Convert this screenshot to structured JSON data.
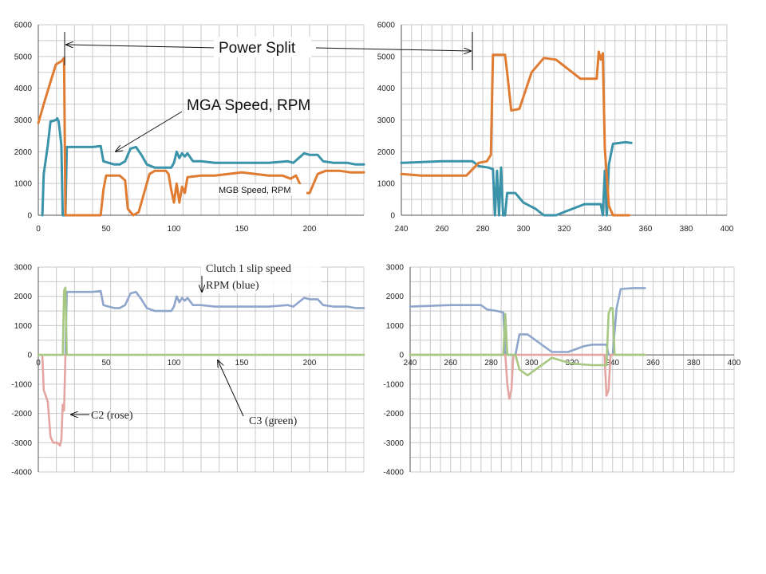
{
  "chart_data": [
    {
      "type": "line",
      "xlim": [
        0,
        240
      ],
      "ylim": [
        0,
        6000
      ],
      "xticks": [
        0,
        50,
        100,
        150,
        200
      ],
      "yticks": [
        0,
        1000,
        2000,
        3000,
        4000,
        5000,
        6000
      ],
      "grid": true,
      "series": [
        {
          "name": "MGA Speed, RPM",
          "color": "#3a93a8",
          "points": [
            [
              3,
              0
            ],
            [
              4,
              1300
            ],
            [
              7,
              2200
            ],
            [
              9,
              2950
            ],
            [
              13,
              3000
            ],
            [
              14,
              3050
            ],
            [
              15,
              2950
            ],
            [
              16,
              2600
            ],
            [
              17,
              2200
            ],
            [
              18,
              0
            ],
            [
              20,
              0
            ],
            [
              21,
              2150
            ],
            [
              30,
              2150
            ],
            [
              40,
              2150
            ],
            [
              46,
              2180
            ],
            [
              48,
              1700
            ],
            [
              52,
              1650
            ],
            [
              56,
              1600
            ],
            [
              60,
              1600
            ],
            [
              64,
              1700
            ],
            [
              68,
              2100
            ],
            [
              72,
              2150
            ],
            [
              76,
              1900
            ],
            [
              80,
              1600
            ],
            [
              86,
              1500
            ],
            [
              92,
              1500
            ],
            [
              98,
              1500
            ],
            [
              100,
              1650
            ],
            [
              102,
              2000
            ],
            [
              104,
              1800
            ],
            [
              106,
              1950
            ],
            [
              108,
              1850
            ],
            [
              110,
              1950
            ],
            [
              114,
              1700
            ],
            [
              120,
              1700
            ],
            [
              130,
              1650
            ],
            [
              150,
              1650
            ],
            [
              170,
              1650
            ],
            [
              184,
              1700
            ],
            [
              188,
              1650
            ],
            [
              196,
              1950
            ],
            [
              200,
              1900
            ],
            [
              206,
              1900
            ],
            [
              210,
              1700
            ],
            [
              218,
              1650
            ],
            [
              228,
              1650
            ],
            [
              234,
              1600
            ],
            [
              240,
              1600
            ]
          ]
        },
        {
          "name": "MGB Speed, RPM",
          "color": "#e07b32",
          "points": [
            [
              0,
              2900
            ],
            [
              4,
              3500
            ],
            [
              9,
              4200
            ],
            [
              13,
              4750
            ],
            [
              17,
              4850
            ],
            [
              19,
              4950
            ],
            [
              20,
              0
            ],
            [
              30,
              0
            ],
            [
              46,
              0
            ],
            [
              48,
              800
            ],
            [
              50,
              1250
            ],
            [
              60,
              1250
            ],
            [
              64,
              1100
            ],
            [
              66,
              200
            ],
            [
              70,
              0
            ],
            [
              74,
              100
            ],
            [
              78,
              700
            ],
            [
              82,
              1300
            ],
            [
              86,
              1400
            ],
            [
              94,
              1400
            ],
            [
              96,
              1300
            ],
            [
              98,
              800
            ],
            [
              100,
              400
            ],
            [
              102,
              1000
            ],
            [
              104,
              400
            ],
            [
              106,
              900
            ],
            [
              108,
              700
            ],
            [
              110,
              1200
            ],
            [
              120,
              1250
            ],
            [
              130,
              1250
            ],
            [
              140,
              1300
            ],
            [
              150,
              1350
            ],
            [
              160,
              1300
            ],
            [
              170,
              1250
            ],
            [
              180,
              1250
            ],
            [
              186,
              1150
            ],
            [
              190,
              1250
            ],
            [
              196,
              700
            ],
            [
              200,
              700
            ],
            [
              206,
              1300
            ],
            [
              212,
              1400
            ],
            [
              222,
              1400
            ],
            [
              230,
              1350
            ],
            [
              240,
              1350
            ]
          ]
        }
      ]
    },
    {
      "type": "line",
      "xlim": [
        240,
        400
      ],
      "ylim": [
        0,
        6000
      ],
      "xticks": [
        240,
        260,
        280,
        300,
        320,
        340,
        360,
        380,
        400
      ],
      "yticks": [
        0,
        1000,
        2000,
        3000,
        4000,
        5000,
        6000
      ],
      "grid": true,
      "series": [
        {
          "name": "MGA Speed, RPM",
          "color": "#3a93a8",
          "points": [
            [
              240,
              1650
            ],
            [
              260,
              1700
            ],
            [
              275,
              1700
            ],
            [
              278,
              1550
            ],
            [
              283,
              1500
            ],
            [
              285,
              1450
            ],
            [
              286,
              0
            ],
            [
              287,
              1400
            ],
            [
              288,
              0
            ],
            [
              289,
              1500
            ],
            [
              290,
              0
            ],
            [
              291,
              0
            ],
            [
              292,
              700
            ],
            [
              296,
              700
            ],
            [
              300,
              400
            ],
            [
              306,
              200
            ],
            [
              310,
              0
            ],
            [
              316,
              0
            ],
            [
              322,
              150
            ],
            [
              330,
              350
            ],
            [
              338,
              350
            ],
            [
              339,
              0
            ],
            [
              340,
              1400
            ],
            [
              341,
              0
            ],
            [
              342,
              1600
            ],
            [
              344,
              2250
            ],
            [
              350,
              2300
            ],
            [
              353,
              2280
            ]
          ]
        },
        {
          "name": "MGB Speed, RPM",
          "color": "#e07b32",
          "points": [
            [
              240,
              1300
            ],
            [
              250,
              1250
            ],
            [
              260,
              1250
            ],
            [
              272,
              1250
            ],
            [
              278,
              1650
            ],
            [
              282,
              1700
            ],
            [
              284,
              1900
            ],
            [
              285,
              5050
            ],
            [
              291,
              5050
            ],
            [
              292,
              4500
            ],
            [
              294,
              3300
            ],
            [
              298,
              3350
            ],
            [
              304,
              4500
            ],
            [
              310,
              4950
            ],
            [
              316,
              4900
            ],
            [
              328,
              4300
            ],
            [
              336,
              4300
            ],
            [
              337,
              5150
            ],
            [
              338,
              4900
            ],
            [
              339,
              5100
            ],
            [
              340,
              2100
            ],
            [
              342,
              300
            ],
            [
              344,
              0
            ],
            [
              352,
              0
            ]
          ]
        }
      ]
    },
    {
      "type": "line",
      "xlim": [
        0,
        240
      ],
      "ylim": [
        -4000,
        3000
      ],
      "xticks": [
        0,
        50,
        100,
        150,
        200
      ],
      "yticks": [
        -4000,
        -3000,
        -2000,
        -1000,
        0,
        1000,
        2000,
        3000
      ],
      "grid": true,
      "series": [
        {
          "name": "Clutch 1 slip speed RPM (blue)",
          "color": "#8fa6cc",
          "points": [
            [
              20,
              0
            ],
            [
              21,
              2150
            ],
            [
              30,
              2150
            ],
            [
              40,
              2150
            ],
            [
              46,
              2180
            ],
            [
              48,
              1700
            ],
            [
              52,
              1650
            ],
            [
              56,
              1600
            ],
            [
              60,
              1600
            ],
            [
              64,
              1700
            ],
            [
              68,
              2100
            ],
            [
              72,
              2150
            ],
            [
              76,
              1900
            ],
            [
              80,
              1600
            ],
            [
              86,
              1500
            ],
            [
              92,
              1500
            ],
            [
              98,
              1500
            ],
            [
              100,
              1650
            ],
            [
              102,
              2000
            ],
            [
              104,
              1800
            ],
            [
              106,
              1950
            ],
            [
              108,
              1850
            ],
            [
              110,
              1950
            ],
            [
              114,
              1700
            ],
            [
              120,
              1700
            ],
            [
              130,
              1650
            ],
            [
              150,
              1650
            ],
            [
              170,
              1650
            ],
            [
              184,
              1700
            ],
            [
              188,
              1650
            ],
            [
              196,
              1950
            ],
            [
              200,
              1900
            ],
            [
              206,
              1900
            ],
            [
              210,
              1700
            ],
            [
              218,
              1650
            ],
            [
              228,
              1650
            ],
            [
              234,
              1600
            ],
            [
              240,
              1600
            ]
          ]
        },
        {
          "name": "C2 (rose)",
          "color": "#e3a5a2",
          "points": [
            [
              0,
              0
            ],
            [
              3,
              0
            ],
            [
              4,
              -1200
            ],
            [
              7,
              -1600
            ],
            [
              9,
              -2800
            ],
            [
              11,
              -3000
            ],
            [
              14,
              -3000
            ],
            [
              16,
              -3100
            ],
            [
              17,
              -2900
            ],
            [
              18,
              -1700
            ],
            [
              19,
              -1900
            ],
            [
              20,
              0
            ]
          ]
        },
        {
          "name": "C3 (green)",
          "color": "#a7c882",
          "points": [
            [
              0,
              0
            ],
            [
              18,
              0
            ],
            [
              19,
              2200
            ],
            [
              20,
              2300
            ],
            [
              21,
              0
            ],
            [
              100,
              0
            ],
            [
              240,
              0
            ]
          ]
        }
      ]
    },
    {
      "type": "line",
      "xlim": [
        240,
        400
      ],
      "ylim": [
        -4000,
        3000
      ],
      "xticks": [
        240,
        260,
        280,
        300,
        320,
        340,
        360,
        380,
        400
      ],
      "yticks": [
        -4000,
        -3000,
        -2000,
        -1000,
        0,
        1000,
        2000,
        3000
      ],
      "grid": true,
      "series": [
        {
          "name": "Clutch 1 slip speed RPM (blue)",
          "color": "#8fa6cc",
          "points": [
            [
              240,
              1650
            ],
            [
              260,
              1700
            ],
            [
              275,
              1700
            ],
            [
              278,
              1550
            ],
            [
              283,
              1500
            ],
            [
              286,
              1450
            ],
            [
              287,
              0
            ],
            [
              292,
              0
            ],
            [
              294,
              700
            ],
            [
              298,
              700
            ],
            [
              304,
              400
            ],
            [
              310,
              100
            ],
            [
              318,
              100
            ],
            [
              326,
              300
            ],
            [
              330,
              350
            ],
            [
              337,
              350
            ],
            [
              338,
              0
            ],
            [
              340,
              0
            ],
            [
              342,
              1600
            ],
            [
              344,
              2250
            ],
            [
              350,
              2280
            ],
            [
              356,
              2280
            ]
          ]
        },
        {
          "name": "C2 (rose)",
          "color": "#e3a5a2",
          "points": [
            [
              240,
              0
            ],
            [
              287,
              0
            ],
            [
              288,
              -1000
            ],
            [
              289,
              -1500
            ],
            [
              290,
              -1200
            ],
            [
              291,
              0
            ],
            [
              336,
              0
            ],
            [
              337,
              -1400
            ],
            [
              338,
              -1200
            ],
            [
              339,
              0
            ],
            [
              356,
              0
            ]
          ]
        },
        {
          "name": "C3 (green)",
          "color": "#a7c882",
          "points": [
            [
              240,
              0
            ],
            [
              286,
              0
            ],
            [
              287,
              1400
            ],
            [
              288,
              0
            ],
            [
              292,
              0
            ],
            [
              294,
              -500
            ],
            [
              298,
              -700
            ],
            [
              304,
              -400
            ],
            [
              310,
              -100
            ],
            [
              320,
              -300
            ],
            [
              330,
              -350
            ],
            [
              337,
              -350
            ],
            [
              338,
              1400
            ],
            [
              339,
              1600
            ],
            [
              340,
              1600
            ],
            [
              341,
              0
            ],
            [
              356,
              0
            ]
          ]
        }
      ]
    }
  ],
  "annotations": {
    "power_split": "Power Split",
    "mga_speed": "MGA Speed, RPM",
    "mgb_speed": "MGB Speed, RPM",
    "clutch1_line1": "Clutch 1 slip speed",
    "clutch1_line2": "RPM (blue)",
    "c2": "C2 (rose)",
    "c3": "C3 (green)"
  }
}
